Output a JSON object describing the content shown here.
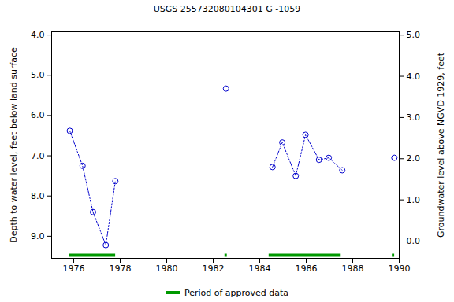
{
  "chart_data": {
    "type": "line",
    "title": "USGS 255732080104301 G  -1059",
    "x_label": null,
    "y_label": "Depth to water level, feet below land surface",
    "y2_label": "Groundwater level above NGVD 1929, feet",
    "x": [
      1975.83,
      1976.38,
      1976.83,
      1977.38,
      1977.79,
      null,
      1982.55,
      null,
      1984.55,
      1984.97,
      1985.55,
      1985.97,
      1986.55,
      1986.97,
      1987.55,
      null,
      1989.79
    ],
    "series": [
      {
        "name": "Depth to water level",
        "color": "#0000cc",
        "marker": "circle_open",
        "line_style": "dotted",
        "values": [
          6.38,
          7.25,
          8.4,
          9.22,
          7.63,
          null,
          5.33,
          null,
          7.28,
          6.67,
          7.5,
          6.48,
          7.1,
          7.05,
          7.36,
          null,
          7.05
        ]
      }
    ],
    "approved_periods": {
      "name": "Period of approved data",
      "color": "#009900",
      "intervals": [
        [
          1975.8,
          1977.8
        ],
        [
          1982.5,
          1982.6
        ],
        [
          1984.4,
          1987.5
        ],
        [
          1989.7,
          1989.8
        ]
      ]
    },
    "xlim": [
      1975.05,
      1990.0
    ],
    "xticks": [
      1976,
      1978,
      1980,
      1982,
      1984,
      1986,
      1988,
      1990
    ],
    "ylim": [
      9.55,
      3.92
    ],
    "yticks": [
      {
        "value": 4,
        "label": "4.0"
      },
      {
        "value": 5,
        "label": "5.0"
      },
      {
        "value": 6,
        "label": "6.0"
      },
      {
        "value": 7,
        "label": "7.0"
      },
      {
        "value": 8,
        "label": "8.0"
      },
      {
        "value": 9,
        "label": "9.0"
      }
    ],
    "y2lim": [
      -0.42,
      5.08
    ],
    "y2ticks": [
      {
        "value": 0,
        "label": "0.0"
      },
      {
        "value": 1,
        "label": "1.0"
      },
      {
        "value": 2,
        "label": "2.0"
      },
      {
        "value": 3,
        "label": "3.0"
      },
      {
        "value": 4,
        "label": "4.0"
      },
      {
        "value": 5,
        "label": "5.0"
      }
    ],
    "grid": false,
    "legend": "bottom"
  }
}
